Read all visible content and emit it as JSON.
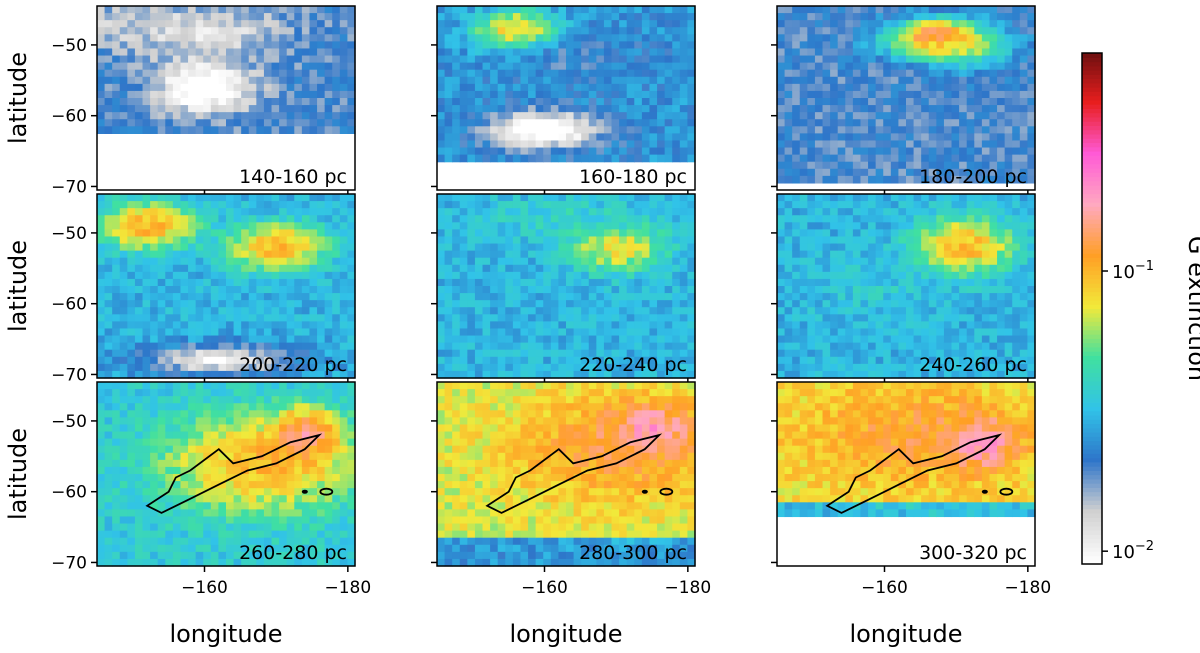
{
  "chart_data": {
    "type": "heatmap",
    "xlabel": "longitude",
    "ylabel": "latitude",
    "colorbar_label": "G extinction",
    "colorbar_scale": "log",
    "colorbar_range": [
      0.009,
      0.6
    ],
    "colorbar_ticks": [
      {
        "value": 0.1,
        "base": "10",
        "exp": "−1"
      },
      {
        "value": 0.01,
        "base": "10",
        "exp": "−2"
      }
    ],
    "colormap": [
      "#ffffff",
      "#d0d0d0",
      "#2e75c9",
      "#31c3e8",
      "#40e0a0",
      "#f2e93a",
      "#ff9f25",
      "#ffa9c0",
      "#ff5ad6",
      "#e81e1e",
      "#6a0f0f"
    ],
    "xlim": [
      -145,
      -181
    ],
    "ylim": [
      -70.5,
      -44.5
    ],
    "xticks": [
      -160,
      -180
    ],
    "yticks": [
      -50,
      -60,
      -70
    ],
    "contour_color": "#000000",
    "panels": [
      {
        "label": "140-160 pc",
        "regions": [
          {
            "lon": -148,
            "lat": -47,
            "sx": 7,
            "sy": 3,
            "v": 0.015
          },
          {
            "lon": -160,
            "lat": -48,
            "sx": 12,
            "sy": 4,
            "v": 0.012
          },
          {
            "lon": -160,
            "lat": -56,
            "sx": 7,
            "sy": 4,
            "v": 0.006
          }
        ],
        "bg": 0.02,
        "nodata_below": -62
      },
      {
        "label": "160-180 pc",
        "regions": [
          {
            "lon": -156,
            "lat": -48,
            "sx": 5,
            "sy": 2.5,
            "v": 0.09
          },
          {
            "lon": -165,
            "lat": -52,
            "sx": 10,
            "sy": 3,
            "v": 0.02
          },
          {
            "lon": -160,
            "lat": -62,
            "sx": 9,
            "sy": 3,
            "v": 0.006
          }
        ],
        "bg": 0.025,
        "nodata_below": -66
      },
      {
        "label": "180-200 pc",
        "regions": [
          {
            "lon": -167,
            "lat": -49,
            "sx": 2.5,
            "sy": 1.5,
            "v": 0.4
          },
          {
            "lon": -168,
            "lat": -50,
            "sx": 7,
            "sy": 3,
            "v": 0.1
          },
          {
            "lon": -162,
            "lat": -55,
            "sx": 12,
            "sy": 4,
            "v": 0.02
          }
        ],
        "bg": 0.02,
        "nodata_below": -69
      },
      {
        "label": "200-220 pc",
        "regions": [
          {
            "lon": -152,
            "lat": -49,
            "sx": 6,
            "sy": 3,
            "v": 0.1
          },
          {
            "lon": -170,
            "lat": -52,
            "sx": 6,
            "sy": 3,
            "v": 0.1
          },
          {
            "lon": -162,
            "lat": -68,
            "sx": 12,
            "sy": 2.5,
            "v": 0.01
          }
        ],
        "bg": 0.03
      },
      {
        "label": "220-240 pc",
        "regions": [
          {
            "lon": -170,
            "lat": -52,
            "sx": 6,
            "sy": 3,
            "v": 0.08
          },
          {
            "lon": -162,
            "lat": -48,
            "sx": 10,
            "sy": 3,
            "v": 0.04
          }
        ],
        "bg": 0.03
      },
      {
        "label": "240-260 pc",
        "regions": [
          {
            "lon": -171,
            "lat": -52,
            "sx": 6,
            "sy": 3.5,
            "v": 0.1
          },
          {
            "lon": -160,
            "lat": -58,
            "sx": 10,
            "sy": 4,
            "v": 0.035
          }
        ],
        "bg": 0.03
      },
      {
        "label": "260-280 pc",
        "regions": [
          {
            "lon": -168,
            "lat": -56,
            "sx": 12,
            "sy": 6,
            "v": 0.1
          },
          {
            "lon": -174,
            "lat": -52,
            "sx": 4,
            "sy": 3,
            "v": 0.15
          }
        ],
        "bg": 0.035
      },
      {
        "label": "280-300 pc",
        "regions": [
          {
            "lon": -170,
            "lat": -54,
            "sx": 14,
            "sy": 7,
            "v": 0.12
          },
          {
            "lon": -175,
            "lat": -51,
            "sx": 5,
            "sy": 3,
            "v": 0.18
          }
        ],
        "bg": 0.07,
        "band_below": -66,
        "band_v": 0.025
      },
      {
        "label": "300-320 pc",
        "regions": [
          {
            "lon": -173,
            "lat": -53,
            "sx": 4,
            "sy": 3,
            "v": 0.3
          },
          {
            "lon": -165,
            "lat": -52,
            "sx": 14,
            "sy": 6,
            "v": 0.12
          }
        ],
        "bg": 0.08,
        "band_below": -61,
        "band_v": 0.03,
        "nodata_below": -63
      }
    ]
  }
}
